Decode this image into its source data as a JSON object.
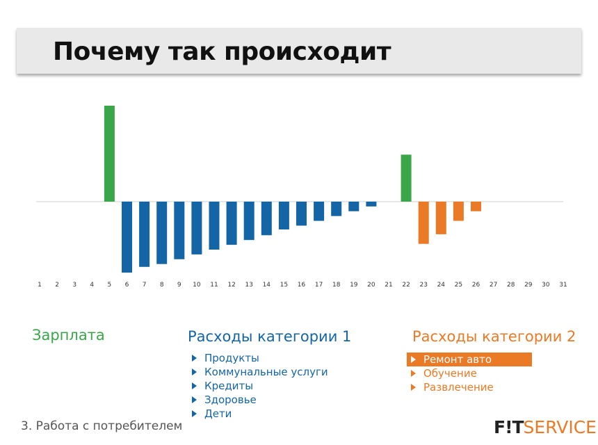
{
  "slide": {
    "title": "Почему так происходит",
    "footer": "3. Работа с потребителем",
    "logo": {
      "part1": "F!T",
      "part2": "SERVICE"
    }
  },
  "legend": {
    "salary": {
      "title": "Зарплата",
      "color": "#3aa64a"
    },
    "cat1": {
      "title": "Расходы категории 1",
      "color": "#1465a6",
      "items": [
        "Продукты",
        "Коммунальные услуги",
        "Кредиты",
        "Здоровье",
        "Дети"
      ]
    },
    "cat2": {
      "title": "Расходы категории 2",
      "color": "#ea7a26",
      "items": [
        "Ремонт авто",
        "Обучение",
        "Развлечение"
      ],
      "selected_index": 0
    }
  },
  "chart_data": {
    "type": "bar",
    "categories": [
      "1",
      "2",
      "3",
      "4",
      "5",
      "6",
      "7",
      "8",
      "9",
      "10",
      "11",
      "12",
      "13",
      "14",
      "15",
      "16",
      "17",
      "18",
      "19",
      "20",
      "21",
      "22",
      "23",
      "24",
      "25",
      "26",
      "27",
      "28",
      "29",
      "30",
      "31"
    ],
    "series": [
      {
        "name": "Зарплата",
        "color": "#3aa64a",
        "values": [
          0,
          0,
          0,
          0,
          100,
          0,
          0,
          0,
          0,
          0,
          0,
          0,
          0,
          0,
          0,
          0,
          0,
          0,
          0,
          0,
          0,
          49,
          0,
          0,
          0,
          0,
          0,
          0,
          0,
          0,
          0
        ]
      },
      {
        "name": "Расходы категории 1",
        "color": "#1465a6",
        "values": [
          0,
          0,
          0,
          0,
          0,
          -74,
          -68,
          -65,
          -60,
          -55,
          -50,
          -45,
          -40,
          -35,
          -29,
          -25,
          -20,
          -15,
          -10,
          -5,
          0,
          0,
          0,
          0,
          0,
          0,
          0,
          0,
          0,
          0,
          0
        ]
      },
      {
        "name": "Расходы категории 2",
        "color": "#ea7a26",
        "values": [
          0,
          0,
          0,
          0,
          0,
          0,
          0,
          0,
          0,
          0,
          0,
          0,
          0,
          0,
          0,
          0,
          0,
          0,
          0,
          0,
          0,
          0,
          -44,
          -34,
          -20,
          -10,
          0,
          0,
          0,
          0,
          0
        ]
      }
    ],
    "ylim": [
      -80,
      100
    ],
    "grid": false
  }
}
